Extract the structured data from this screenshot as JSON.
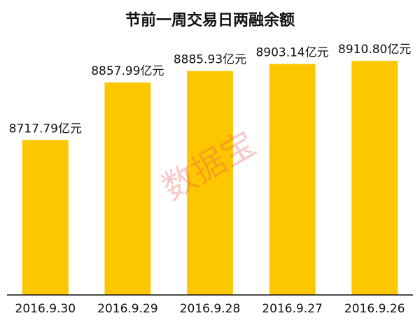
{
  "chart_data": {
    "type": "bar",
    "title": "节前一周交易日两融余额",
    "categories": [
      "2016.9.30",
      "2016.9.29",
      "2016.9.28",
      "2016.9.27",
      "2016.9.26"
    ],
    "values": [
      8717.79,
      8857.99,
      8885.93,
      8903.14,
      8910.8
    ],
    "value_labels": [
      "8717.79亿元",
      "8857.99亿元",
      "8885.93亿元",
      "8903.14亿元",
      "8910.80亿元"
    ],
    "color": "#fdc700",
    "ylim": [
      8340,
      8950
    ],
    "watermark": "数据宝"
  }
}
